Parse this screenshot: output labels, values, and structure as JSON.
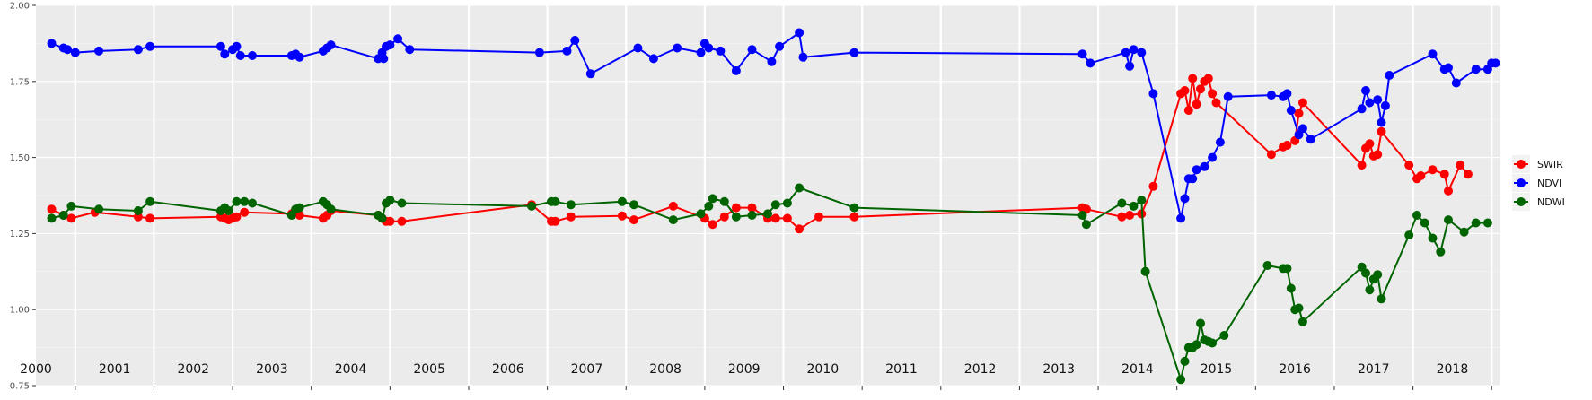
{
  "chart_data": {
    "type": "line",
    "title": "",
    "xlabel": "",
    "ylabel": "",
    "x_unit": "year (decimal)",
    "xlim": [
      2000.0,
      2018.6
    ],
    "ylim": [
      0.75,
      2.0
    ],
    "y_ticks": [
      0.75,
      1.0,
      1.25,
      1.5,
      1.75,
      2.0
    ],
    "y_tick_labels": [
      "0.75",
      "1.00",
      "1.25",
      "1.50",
      "1.75",
      "2.00"
    ],
    "year_labels": [
      "2000",
      "2001",
      "2002",
      "2003",
      "2004",
      "2005",
      "2006",
      "2007",
      "2008",
      "2009",
      "2010",
      "2011",
      "2012",
      "2013",
      "2014",
      "2015",
      "2016",
      "2017",
      "2018"
    ],
    "grid": true,
    "legend_position": "right",
    "legend": [
      "SWIR",
      "NDVI",
      "NDWI"
    ],
    "series": [
      {
        "name": "SWIR",
        "color": "#ff0000",
        "x": [
          2000.2,
          2000.35,
          2000.45,
          2000.75,
          2001.3,
          2001.45,
          2002.35,
          2002.4,
          2002.45,
          2002.5,
          2002.55,
          2002.65,
          2003.25,
          2003.35,
          2003.65,
          2003.7,
          2003.75,
          2004.35,
          2004.4,
          2004.45,
          2004.5,
          2004.65,
          2006.3,
          2006.55,
          2006.6,
          2006.8,
          2007.45,
          2007.6,
          2008.1,
          2008.5,
          2008.6,
          2008.75,
          2008.9,
          2009.1,
          2009.3,
          2009.4,
          2009.55,
          2009.7,
          2009.95,
          2010.4,
          2013.3,
          2013.35,
          2013.8,
          2013.9,
          2014.05,
          2014.2,
          2014.55,
          2014.6,
          2014.65,
          2014.7,
          2014.75,
          2014.8,
          2014.85,
          2014.9,
          2014.95,
          2015.0,
          2015.7,
          2015.85,
          2015.9,
          2016.0,
          2016.05,
          2016.1,
          2016.85,
          2016.9,
          2016.95,
          2017.0,
          2017.05,
          2017.1,
          2017.45,
          2017.55,
          2017.6,
          2017.75,
          2017.9,
          2017.95,
          2018.1,
          2018.2
        ],
        "y": [
          1.33,
          1.31,
          1.3,
          1.32,
          1.305,
          1.3,
          1.305,
          1.3,
          1.295,
          1.3,
          1.305,
          1.32,
          1.315,
          1.31,
          1.3,
          1.31,
          1.325,
          1.31,
          1.3,
          1.29,
          1.29,
          1.29,
          1.345,
          1.29,
          1.29,
          1.305,
          1.308,
          1.295,
          1.34,
          1.3,
          1.28,
          1.305,
          1.335,
          1.335,
          1.3,
          1.3,
          1.3,
          1.265,
          1.305,
          1.305,
          1.335,
          1.33,
          1.305,
          1.31,
          1.315,
          1.405,
          1.71,
          1.72,
          1.655,
          1.76,
          1.675,
          1.725,
          1.75,
          1.76,
          1.71,
          1.68,
          1.51,
          1.535,
          1.54,
          1.555,
          1.645,
          1.68,
          1.475,
          1.53,
          1.545,
          1.505,
          1.51,
          1.585,
          1.475,
          1.43,
          1.44,
          1.46,
          1.445,
          1.39,
          1.475,
          1.445
        ]
      },
      {
        "name": "NDVI",
        "color": "#0000ff",
        "x": [
          2000.2,
          2000.35,
          2000.4,
          2000.5,
          2000.8,
          2001.3,
          2001.45,
          2002.35,
          2002.4,
          2002.5,
          2002.55,
          2002.6,
          2002.75,
          2003.25,
          2003.3,
          2003.35,
          2003.65,
          2003.7,
          2003.75,
          2004.35,
          2004.4,
          2004.42,
          2004.45,
          2004.5,
          2004.6,
          2004.75,
          2006.4,
          2006.75,
          2006.85,
          2007.05,
          2007.65,
          2007.85,
          2008.15,
          2008.45,
          2008.5,
          2008.55,
          2008.7,
          2008.9,
          2009.1,
          2009.35,
          2009.45,
          2009.7,
          2009.75,
          2010.4,
          2013.3,
          2013.4,
          2013.85,
          2013.9,
          2013.95,
          2014.05,
          2014.2,
          2014.55,
          2014.6,
          2014.65,
          2014.7,
          2014.75,
          2014.85,
          2014.95,
          2015.05,
          2015.15,
          2015.7,
          2015.85,
          2015.9,
          2015.95,
          2016.05,
          2016.1,
          2016.2,
          2016.85,
          2016.9,
          2016.95,
          2017.05,
          2017.1,
          2017.15,
          2017.2,
          2017.75,
          2017.9,
          2017.95,
          2018.05,
          2018.3,
          2018.45,
          2018.5,
          2018.55
        ],
        "y": [
          1.875,
          1.86,
          1.855,
          1.845,
          1.85,
          1.855,
          1.865,
          1.865,
          1.84,
          1.855,
          1.865,
          1.835,
          1.835,
          1.835,
          1.84,
          1.83,
          1.85,
          1.86,
          1.87,
          1.825,
          1.845,
          1.825,
          1.865,
          1.87,
          1.89,
          1.855,
          1.845,
          1.85,
          1.885,
          1.775,
          1.86,
          1.825,
          1.86,
          1.845,
          1.875,
          1.86,
          1.85,
          1.785,
          1.855,
          1.815,
          1.865,
          1.91,
          1.83,
          1.845,
          1.84,
          1.81,
          1.845,
          1.8,
          1.855,
          1.845,
          1.71,
          1.3,
          1.365,
          1.43,
          1.43,
          1.46,
          1.47,
          1.5,
          1.55,
          1.7,
          1.705,
          1.7,
          1.71,
          1.655,
          1.575,
          1.595,
          1.56,
          1.66,
          1.72,
          1.68,
          1.69,
          1.615,
          1.67,
          1.77,
          1.84,
          1.79,
          1.795,
          1.745,
          1.79,
          1.79,
          1.81,
          1.81
        ]
      },
      {
        "name": "NDWI",
        "color": "#006400",
        "x": [
          2000.2,
          2000.35,
          2000.45,
          2000.8,
          2001.3,
          2001.45,
          2002.35,
          2002.4,
          2002.45,
          2002.55,
          2002.65,
          2002.75,
          2003.25,
          2003.3,
          2003.35,
          2003.65,
          2003.7,
          2003.75,
          2004.35,
          2004.4,
          2004.45,
          2004.5,
          2004.65,
          2006.3,
          2006.55,
          2006.6,
          2006.8,
          2007.45,
          2007.6,
          2008.1,
          2008.45,
          2008.55,
          2008.6,
          2008.75,
          2008.9,
          2009.1,
          2009.3,
          2009.4,
          2009.55,
          2009.7,
          2010.4,
          2013.3,
          2013.35,
          2013.8,
          2013.95,
          2014.05,
          2014.1,
          2014.55,
          2014.6,
          2014.65,
          2014.7,
          2014.75,
          2014.8,
          2014.85,
          2014.9,
          2014.95,
          2015.1,
          2015.65,
          2015.85,
          2015.9,
          2015.95,
          2016.0,
          2016.05,
          2016.1,
          2016.85,
          2016.9,
          2016.95,
          2017.0,
          2017.05,
          2017.1,
          2017.45,
          2017.55,
          2017.65,
          2017.75,
          2017.85,
          2017.95,
          2018.15,
          2018.3,
          2018.45
        ],
        "y": [
          1.3,
          1.31,
          1.34,
          1.33,
          1.325,
          1.355,
          1.325,
          1.335,
          1.325,
          1.355,
          1.355,
          1.35,
          1.31,
          1.33,
          1.335,
          1.355,
          1.345,
          1.33,
          1.31,
          1.3,
          1.35,
          1.36,
          1.35,
          1.34,
          1.355,
          1.355,
          1.345,
          1.355,
          1.345,
          1.295,
          1.315,
          1.34,
          1.365,
          1.355,
          1.305,
          1.31,
          1.315,
          1.345,
          1.35,
          1.4,
          1.335,
          1.31,
          1.28,
          1.35,
          1.34,
          1.36,
          1.125,
          0.77,
          0.83,
          0.875,
          0.875,
          0.885,
          0.955,
          0.9,
          0.895,
          0.89,
          0.915,
          1.145,
          1.135,
          1.135,
          1.07,
          1.0,
          1.005,
          0.96,
          1.14,
          1.12,
          1.065,
          1.1,
          1.115,
          1.035,
          1.245,
          1.31,
          1.285,
          1.235,
          1.19,
          1.295,
          1.255,
          1.285,
          1.285
        ]
      }
    ]
  }
}
